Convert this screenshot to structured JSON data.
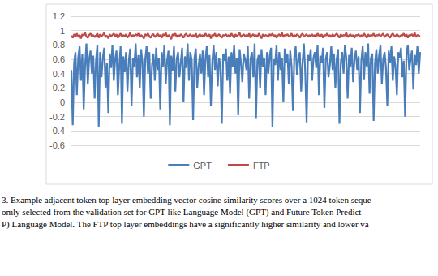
{
  "chart_data": {
    "type": "line",
    "ylim": [
      -0.6,
      1.2
    ],
    "yticks": [
      -0.6,
      -0.4,
      -0.2,
      0,
      0.2,
      0.4,
      0.6,
      0.8,
      1,
      1.2
    ],
    "grid": true,
    "legend": "bottom",
    "tick_labels": "y",
    "caption": [
      "3. Example adjacent token top layer embedding vector cosine similarity scores over a 1024 token seque",
      "omly selected from the validation set for GPT-like Language Model (GPT) and Future Token Predict",
      "P) Language Model. The FTP top layer embeddings have a significantly higher similarity and lower va"
    ],
    "series": [
      {
        "name": "GPT",
        "color": "#4a7ebb",
        "values": [
          0.45,
          -0.32,
          0.55,
          0.7,
          0.1,
          0.62,
          0.78,
          0.3,
          0.68,
          -0.1,
          0.5,
          0.82,
          0.25,
          0.6,
          0.72,
          0.4,
          0.65,
          0.05,
          0.58,
          0.8,
          -0.34,
          0.7,
          0.35,
          0.62,
          0.76,
          0.2,
          0.55,
          -0.15,
          0.68,
          0.48,
          0.8,
          0.3,
          0.6,
          0.72,
          0.1,
          0.5,
          0.78,
          -0.3,
          0.64,
          0.42,
          0.7,
          0.15,
          0.58,
          0.75,
          -0.05,
          0.62,
          0.5,
          0.82,
          0.35,
          0.66,
          0.2,
          0.74,
          0.55,
          -0.2,
          0.6,
          0.78,
          0.4,
          0.7,
          0.05,
          0.52,
          0.68,
          0.3,
          0.76,
          0.45,
          0.62,
          -0.1,
          0.7,
          0.5,
          0.8,
          0.25,
          0.58,
          0.72,
          -0.32,
          0.65,
          0.44,
          0.78,
          0.15,
          0.6,
          0.7,
          0.35,
          0.55,
          0.76,
          0.0,
          0.64,
          0.48,
          0.82,
          0.3,
          0.7,
          0.58,
          -0.25,
          0.62,
          0.75,
          0.2,
          0.5,
          0.68,
          0.4,
          0.72,
          0.1,
          0.6,
          0.78,
          0.35,
          0.66,
          -0.05,
          0.55,
          0.8,
          0.45,
          0.7,
          0.22,
          0.62,
          0.5,
          -0.3,
          0.68,
          0.58,
          0.75,
          0.3,
          0.64,
          0.12,
          0.7,
          0.5,
          0.8,
          0.4,
          0.62,
          -0.18,
          0.74,
          0.55,
          0.28,
          0.68,
          0.6,
          0.45,
          0.78,
          0.05,
          0.6,
          0.7,
          0.35,
          0.82,
          -0.22,
          0.58,
          0.66,
          0.2,
          0.74,
          0.5,
          0.62,
          0.1,
          0.7,
          0.4,
          0.65,
          0.76,
          -0.35,
          0.6,
          0.52,
          0.8,
          0.3,
          0.7,
          0.45,
          0.62,
          0.0,
          0.75,
          0.55,
          0.68,
          0.25,
          0.72,
          0.5,
          -0.12,
          0.64,
          0.78,
          0.38,
          0.6,
          0.7,
          0.15,
          0.55,
          0.82,
          0.42,
          -0.28,
          0.66,
          0.58,
          0.74,
          0.3,
          0.62,
          0.7,
          0.48,
          0.8,
          0.1,
          0.65,
          0.55,
          0.76,
          -0.08,
          0.6,
          0.7,
          0.35,
          0.52,
          0.78,
          0.45,
          0.68,
          0.2,
          0.6,
          0.74,
          -0.3,
          0.55,
          0.7,
          0.4,
          0.8,
          0.62,
          0.05,
          0.66,
          0.5,
          0.76,
          0.28,
          0.6,
          0.72,
          0.45,
          0.64,
          -0.15,
          0.58,
          0.78,
          0.32,
          0.7,
          0.5,
          0.82,
          0.12,
          0.62,
          0.68,
          -0.26,
          0.55,
          0.74,
          0.4,
          0.66,
          0.8,
          0.25,
          0.6,
          0.7,
          0.48,
          -0.05,
          0.72,
          0.55,
          0.78,
          0.3,
          0.64,
          0.5,
          0.1,
          0.7,
          0.62,
          0.76,
          0.35,
          0.58,
          -0.2,
          0.68,
          0.8,
          0.45,
          0.6,
          0.72,
          0.18,
          0.66,
          0.52,
          0.78,
          0.4,
          0.7
        ]
      },
      {
        "name": "FTP",
        "color": "#be4b48",
        "values": [
          0.93,
          0.9,
          0.95,
          0.92,
          0.96,
          0.91,
          0.94,
          0.89,
          0.95,
          0.93,
          0.97,
          0.92,
          0.9,
          0.94,
          0.96,
          0.92,
          0.94,
          0.91,
          0.93,
          0.96,
          0.9,
          0.95,
          0.92,
          0.94,
          0.97,
          0.91,
          0.93,
          0.89,
          0.95,
          0.92,
          0.94,
          0.96,
          0.92,
          0.95,
          0.9,
          0.93,
          0.96,
          0.91,
          0.94,
          0.92,
          0.95,
          0.9,
          0.93,
          0.97,
          0.91,
          0.94,
          0.92,
          0.95,
          0.93,
          0.96,
          0.91,
          0.94,
          0.92,
          0.89,
          0.95,
          0.93,
          0.96,
          0.92,
          0.9,
          0.94,
          0.95,
          0.91,
          0.93,
          0.96,
          0.92,
          0.94,
          0.9,
          0.95,
          0.93,
          0.97,
          0.91,
          0.94,
          0.92,
          0.88,
          0.95,
          0.93,
          0.96,
          0.91,
          0.94,
          0.92,
          0.95,
          0.93,
          0.9,
          0.94,
          0.96,
          0.92,
          0.93,
          0.95,
          0.91,
          0.94,
          0.92,
          0.96,
          0.9,
          0.93,
          0.95,
          0.92,
          0.94,
          0.91,
          0.96,
          0.93,
          0.92,
          0.95,
          0.89,
          0.94,
          0.93,
          0.96,
          0.91,
          0.93,
          0.95,
          0.92,
          0.9,
          0.94,
          0.93,
          0.95,
          0.92,
          0.94,
          0.91,
          0.96,
          0.93,
          0.9,
          0.95,
          0.92,
          0.94,
          0.97,
          0.91,
          0.93,
          0.95,
          0.92,
          0.94,
          0.92,
          0.96,
          0.9,
          0.93,
          0.95,
          0.92,
          0.94,
          0.91,
          0.96,
          0.93,
          0.89,
          0.95,
          0.92,
          0.94,
          0.93,
          0.91,
          0.95,
          0.93,
          0.96,
          0.92,
          0.94,
          0.9,
          0.93,
          0.95,
          0.92,
          0.97,
          0.91,
          0.94,
          0.93,
          0.95,
          0.92,
          0.93,
          0.96,
          0.91,
          0.94,
          0.92,
          0.95,
          0.93,
          0.9,
          0.94,
          0.96,
          0.92,
          0.93,
          0.95,
          0.91,
          0.94,
          0.92,
          0.95,
          0.92,
          0.94,
          0.91,
          0.96,
          0.93,
          0.92,
          0.95,
          0.9,
          0.94,
          0.93,
          0.96,
          0.92,
          0.94,
          0.91,
          0.95,
          0.92,
          0.94,
          0.96,
          0.93,
          0.9,
          0.95,
          0.92,
          0.94,
          0.93,
          0.97,
          0.91,
          0.93,
          0.95,
          0.92,
          0.94,
          0.9,
          0.94,
          0.93,
          0.95,
          0.91,
          0.94,
          0.92,
          0.96,
          0.93,
          0.9,
          0.95,
          0.92,
          0.94,
          0.93,
          0.96,
          0.91,
          0.94,
          0.93,
          0.95,
          0.92,
          0.94,
          0.96,
          0.91,
          0.93,
          0.95,
          0.92,
          0.9,
          0.94,
          0.96,
          0.93,
          0.92,
          0.95,
          0.93,
          0.91,
          0.94,
          0.93,
          0.96,
          0.92,
          0.95,
          0.9,
          0.94,
          0.93,
          0.95,
          0.92,
          0.97,
          0.91,
          0.94,
          0.93,
          0.92
        ]
      }
    ]
  }
}
